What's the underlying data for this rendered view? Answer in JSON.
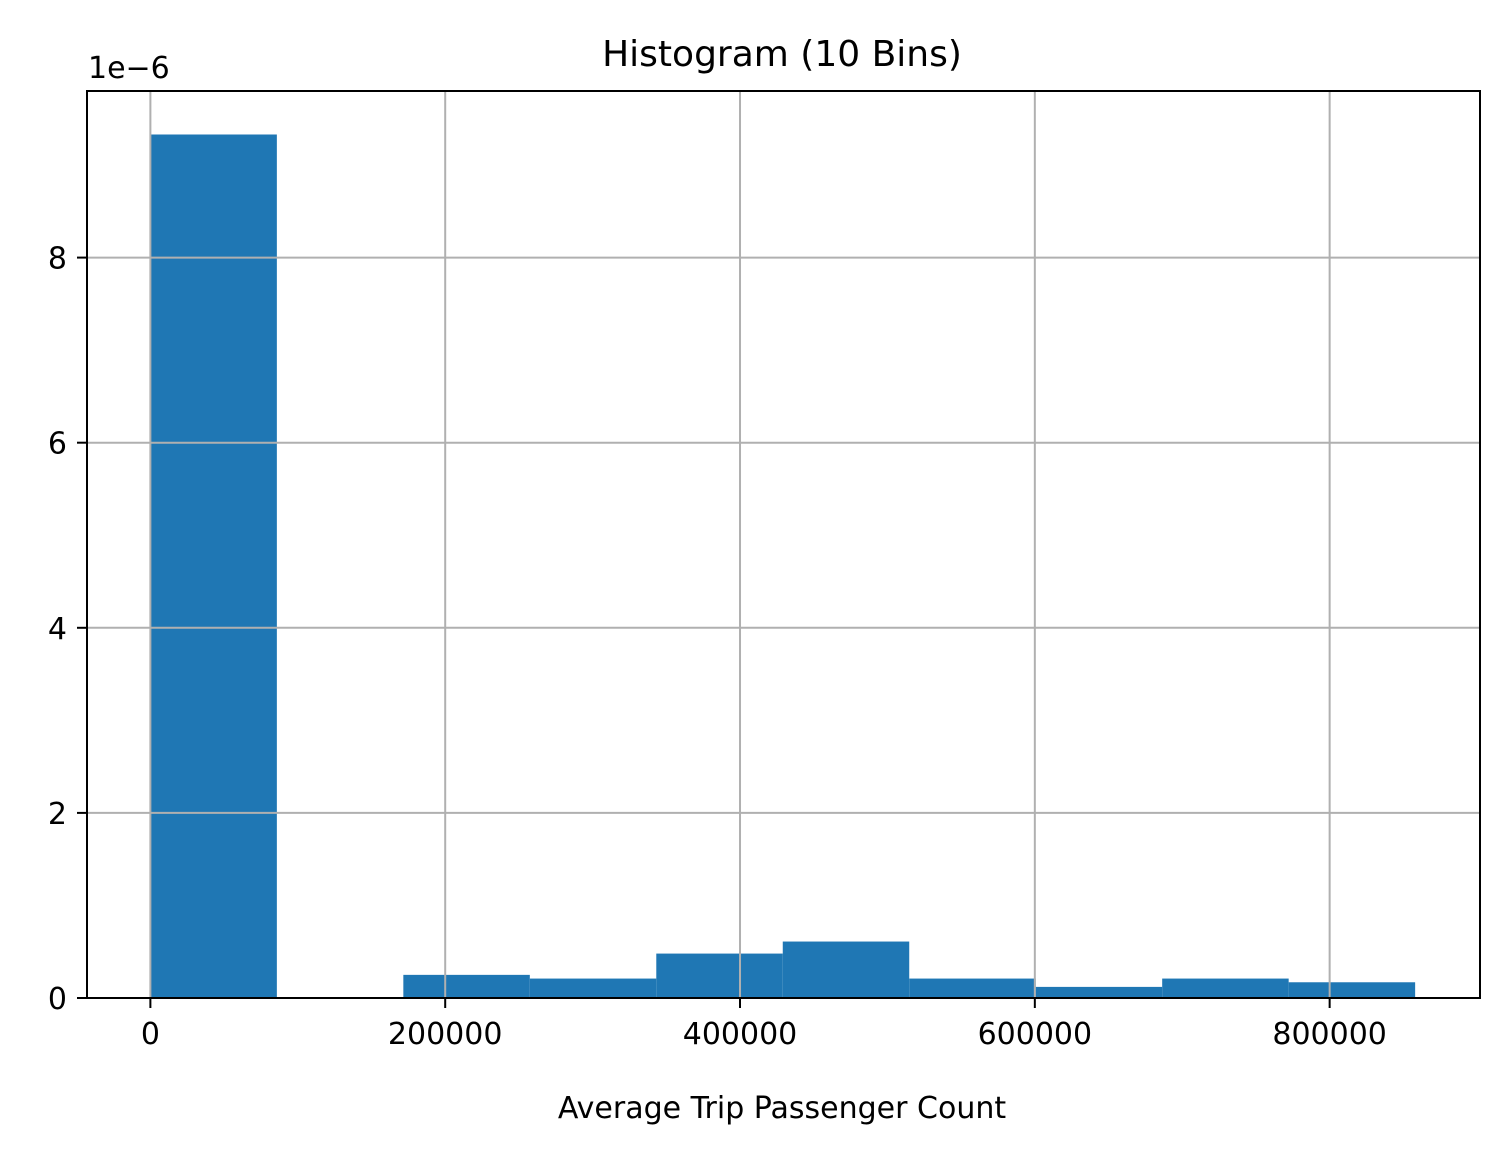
{
  "chart_data": {
    "type": "bar",
    "title": "Histogram (10 Bins)",
    "xlabel": "Average Trip Passenger Count",
    "ylabel": "",
    "y_offset_label": "1e−6",
    "xlim": [
      -43000,
      902000
    ],
    "ylim": [
      0,
      9.8
    ],
    "grid": true,
    "bar_color": "#1f77b4",
    "grid_color": "#b0b0b0",
    "x_ticks": [
      {
        "value": 0,
        "label": "0"
      },
      {
        "value": 200000,
        "label": "200000"
      },
      {
        "value": 400000,
        "label": "400000"
      },
      {
        "value": 600000,
        "label": "600000"
      },
      {
        "value": 800000,
        "label": "800000"
      }
    ],
    "y_ticks": [
      {
        "value": 0,
        "label": "0"
      },
      {
        "value": 2,
        "label": "2"
      },
      {
        "value": 4,
        "label": "4"
      },
      {
        "value": 6,
        "label": "6"
      },
      {
        "value": 8,
        "label": "8"
      }
    ],
    "bin_edges": [
      0,
      85800,
      171600,
      257400,
      343200,
      429000,
      514800,
      600600,
      686400,
      772200,
      858000
    ],
    "values": [
      9.33,
      0.0,
      0.25,
      0.21,
      0.48,
      0.61,
      0.21,
      0.12,
      0.21,
      0.17
    ]
  }
}
